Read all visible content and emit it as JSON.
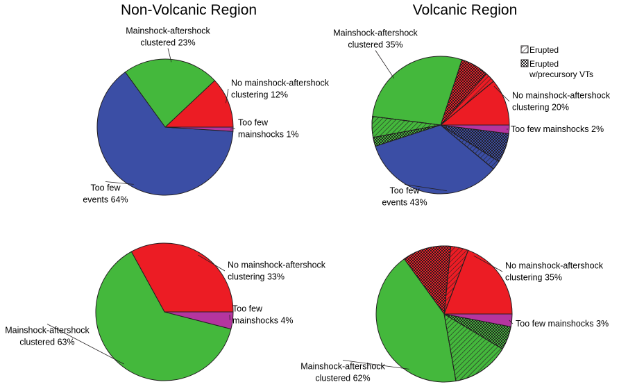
{
  "headers": {
    "left": "Non-Volcanic Region",
    "right": "Volcanic Region"
  },
  "legend": [
    {
      "pattern": "hatch",
      "label": "Erupted"
    },
    {
      "pattern": "cross",
      "label_lines": [
        "Erupted",
        "w/precursory VTs"
      ]
    }
  ],
  "colors": {
    "clustered": "#44b83c",
    "no_clustering": "#ec1c24",
    "too_few_mainshocks": "#b5359f",
    "too_few_events": "#3b4ea5",
    "outline": "#231f20"
  },
  "chart_data": [
    {
      "type": "pie",
      "id": "nonvolcanic-top",
      "slices": [
        {
          "category": "No mainshock-aftershock clustering",
          "value": 12,
          "color": "no_clustering",
          "label_lines": [
            "No mainshock-aftershock",
            "clustering 12%"
          ]
        },
        {
          "category": "Mainshock-aftershock clustered",
          "value": 23,
          "color": "clustered",
          "label_lines": [
            "Mainshock-aftershock",
            "clustered 23%"
          ]
        },
        {
          "category": "Too few events",
          "value": 64,
          "color": "too_few_events",
          "label_lines": [
            "Too few",
            "events 64%"
          ]
        },
        {
          "category": "Too few mainshocks",
          "value": 1,
          "color": "too_few_mainshocks",
          "label_lines": [
            "Too few",
            "mainshocks 1%"
          ]
        }
      ]
    },
    {
      "type": "pie",
      "id": "volcanic-top",
      "slices": [
        {
          "category": "No mainshock-aftershock clustering",
          "value": 20,
          "color": "no_clustering",
          "label_lines": [
            "No mainshock-aftershock",
            "clustering 20%"
          ],
          "sub": [
            {
              "pattern": "none",
              "share": 0.55
            },
            {
              "pattern": "hatch",
              "share": 0.12
            },
            {
              "pattern": "cross",
              "share": 0.33
            }
          ]
        },
        {
          "category": "Mainshock-aftershock clustered",
          "value": 35,
          "color": "clustered",
          "label_lines": [
            "Mainshock-aftershock",
            "clustered 35%"
          ],
          "sub": [
            {
              "pattern": "none",
              "share": 0.8
            },
            {
              "pattern": "hatch",
              "share": 0.14
            },
            {
              "pattern": "cross",
              "share": 0.06
            }
          ]
        },
        {
          "category": "Too few events",
          "value": 43,
          "color": "too_few_events",
          "label_lines": [
            "Too few",
            "events 43%"
          ],
          "sub": [
            {
              "pattern": "none",
              "share": 0.79
            },
            {
              "pattern": "hatch",
              "share": 0.05
            },
            {
              "pattern": "cross",
              "share": 0.16
            }
          ]
        },
        {
          "category": "Too few mainshocks",
          "value": 2,
          "color": "too_few_mainshocks",
          "label_lines": [
            "Too few mainshocks 2%"
          ],
          "sub": [
            {
              "pattern": "none",
              "share": 1
            }
          ]
        }
      ]
    },
    {
      "type": "pie",
      "id": "nonvolcanic-bottom",
      "slices": [
        {
          "category": "No mainshock-aftershock clustering",
          "value": 33,
          "color": "no_clustering",
          "label_lines": [
            "No mainshock-aftershock",
            "clustering 33%"
          ]
        },
        {
          "category": "Mainshock-aftershock clustered",
          "value": 63,
          "color": "clustered",
          "label_lines": [
            "Mainshock-aftershock",
            "clustered 63%"
          ]
        },
        {
          "category": "Too few mainshocks",
          "value": 4,
          "color": "too_few_mainshocks",
          "label_lines": [
            "Too few",
            "mainshocks 4%"
          ]
        }
      ]
    },
    {
      "type": "pie",
      "id": "volcanic-bottom",
      "slices": [
        {
          "category": "No mainshock-aftershock clustering",
          "value": 35,
          "color": "no_clustering",
          "label_lines": [
            "No mainshock-aftershock",
            "clustering 35%"
          ],
          "sub": [
            {
              "pattern": "none",
              "share": 0.55
            },
            {
              "pattern": "hatch",
              "share": 0.12
            },
            {
              "pattern": "cross",
              "share": 0.33
            }
          ]
        },
        {
          "category": "Mainshock-aftershock clustered",
          "value": 62,
          "color": "clustered",
          "label_lines": [
            "Mainshock-aftershock",
            "clustered 62%"
          ],
          "sub": [
            {
              "pattern": "none",
              "share": 0.69
            },
            {
              "pattern": "hatch",
              "share": 0.22
            },
            {
              "pattern": "cross",
              "share": 0.09
            }
          ]
        },
        {
          "category": "Too few mainshocks",
          "value": 3,
          "color": "too_few_mainshocks",
          "label_lines": [
            "Too few mainshocks 3%"
          ],
          "sub": [
            {
              "pattern": "none",
              "share": 1
            }
          ]
        }
      ]
    }
  ]
}
